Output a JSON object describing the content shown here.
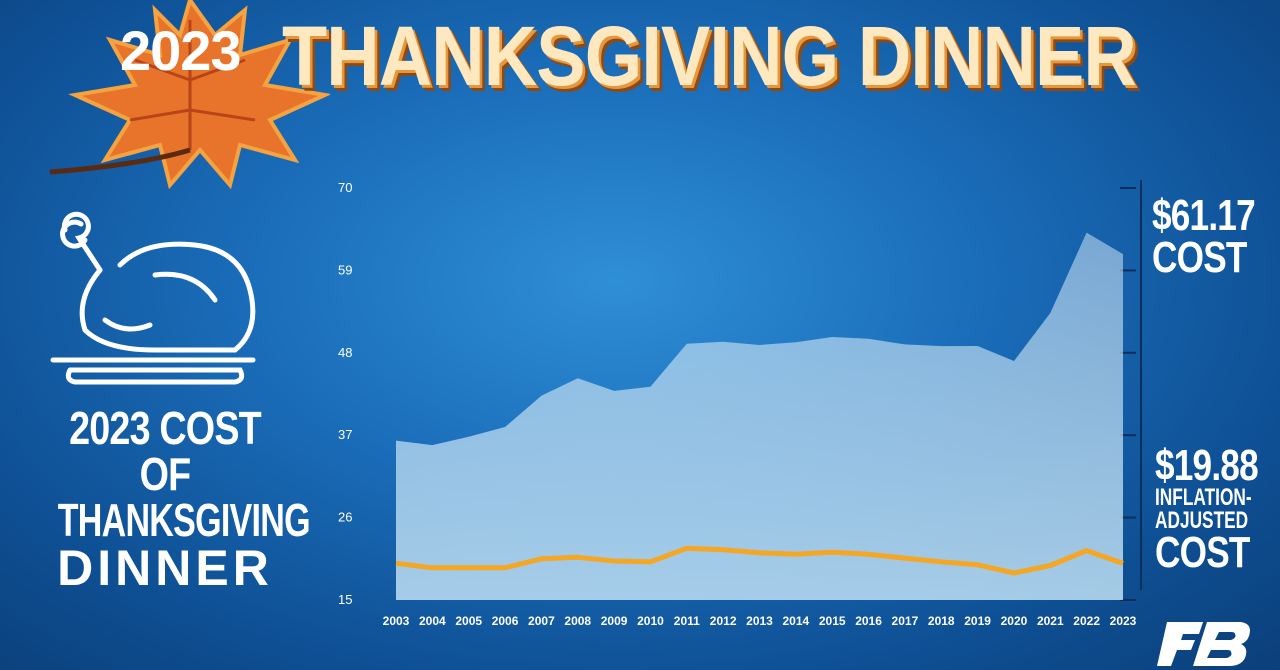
{
  "header": {
    "year": "2023",
    "title": "THANKSGIVING DINNER"
  },
  "left_caption": {
    "line1": "2023 COST OF",
    "line2": "THANKSGIVING",
    "line3": "DINNER"
  },
  "annotations": {
    "cost_value": "$61.17",
    "cost_label": "COST",
    "adjusted_value": "$19.88",
    "adjusted_label_1": "INFLATION-",
    "adjusted_label_2": "ADJUSTED",
    "adjusted_label_3": "COST"
  },
  "icons": [
    "maple-leaf-icon",
    "roast-turkey-icon",
    "farm-bureau-logo-icon"
  ],
  "colors": {
    "background": "#1a6cb8",
    "area_fill": "#b9d9ef",
    "adjusted_line": "#f5a623",
    "title": "#fde8bf"
  },
  "chart_data": {
    "type": "area",
    "x": [
      "2003",
      "2004",
      "2005",
      "2006",
      "2007",
      "2008",
      "2009",
      "2010",
      "2011",
      "2012",
      "2013",
      "2014",
      "2015",
      "2016",
      "2017",
      "2018",
      "2019",
      "2020",
      "2021",
      "2022",
      "2023"
    ],
    "series": [
      {
        "values": [
          36.28,
          35.68,
          36.78,
          38.1,
          42.26,
          44.61,
          42.91,
          43.47,
          49.2,
          49.48,
          49.04,
          49.41,
          50.11,
          49.87,
          49.12,
          48.9,
          48.91,
          46.9,
          53.31,
          64.05,
          61.17
        ]
      },
      {
        "values": [
          19.9,
          19.3,
          19.3,
          19.3,
          20.5,
          20.7,
          20.2,
          20.1,
          21.9,
          21.7,
          21.3,
          21.1,
          21.4,
          21.1,
          20.6,
          20.1,
          19.7,
          18.6,
          19.6,
          21.6,
          19.88
        ]
      }
    ],
    "yticks": [
      15,
      26,
      37,
      48,
      59,
      70
    ],
    "ylim": [
      15,
      70
    ],
    "grid": false
  }
}
